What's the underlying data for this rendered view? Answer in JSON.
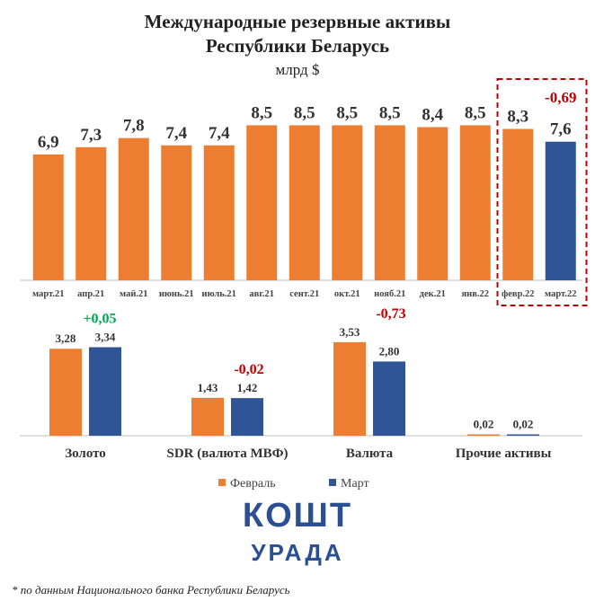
{
  "title_line1": "Международные резервные активы",
  "title_line2": "Республики Беларусь",
  "unit": "млрд $",
  "colors": {
    "feb": "#ed7d31",
    "mar": "#2f5597",
    "highlight": "#c00000",
    "positive": "#00a651"
  },
  "chart_data": [
    {
      "type": "bar",
      "categories": [
        "март.21",
        "апр.21",
        "май.21",
        "июнь.21",
        "июль.21",
        "авг.21",
        "сент.21",
        "окт.21",
        "нояб.21",
        "дек.21",
        "янв.22",
        "февр.22",
        "март.22"
      ],
      "values": [
        6.9,
        7.3,
        7.8,
        7.4,
        7.4,
        8.5,
        8.5,
        8.5,
        8.5,
        8.4,
        8.5,
        8.3,
        7.6
      ],
      "value_labels": [
        "6,9",
        "7,3",
        "7,8",
        "7,4",
        "7,4",
        "8,5",
        "8,5",
        "8,5",
        "8,5",
        "8,4",
        "8,5",
        "8,3",
        "7,6"
      ],
      "change_label": "-0,69",
      "highlighted_categories": [
        "февр.22",
        "март.22"
      ]
    },
    {
      "type": "bar",
      "categories": [
        "Золото",
        "SDR (валюта МВФ)",
        "Валюта",
        "Прочие активы"
      ],
      "series": [
        {
          "name": "Февраль",
          "values": [
            3.28,
            1.43,
            3.53,
            0.02
          ],
          "labels": [
            "3,28",
            "1,43",
            "3,53",
            "0,02"
          ]
        },
        {
          "name": "Март",
          "values": [
            3.34,
            1.42,
            2.8,
            0.02
          ],
          "labels": [
            "3,34",
            "1,42",
            "2,80",
            "0,02"
          ]
        }
      ],
      "changes": [
        "+0,05",
        "-0,02",
        "-0,73",
        ""
      ]
    }
  ],
  "logo": {
    "top": "КОШТ",
    "bottom": "УРАДА"
  },
  "footnote": "* по данным Национального банка Республики Беларусь"
}
